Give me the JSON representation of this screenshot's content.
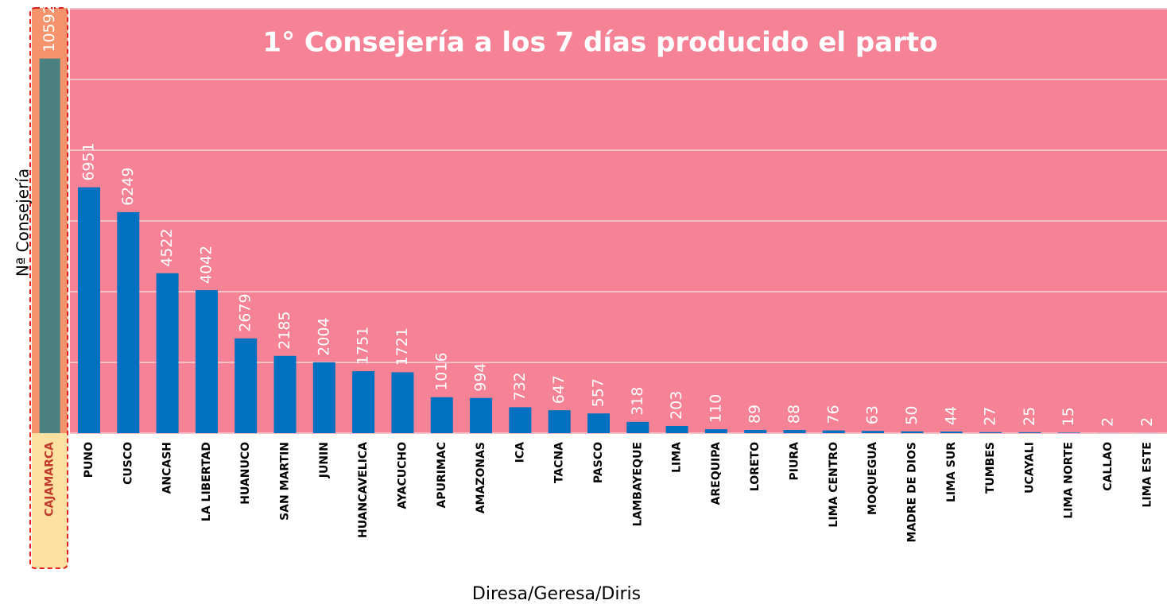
{
  "chart_data": {
    "type": "bar",
    "title": "1° Consejería a los 7 días producido el parto",
    "y_label": "Nª Consejería",
    "x_label": "Diresa/Geresa/Diris",
    "categories": [
      "CAJAMARCA",
      "PUNO",
      "CUSCO",
      "ANCASH",
      "LA LIBERTAD",
      "HUANUCO",
      "SAN MARTIN",
      "JUNIN",
      "HUANCAVELICA",
      "AYACUCHO",
      "APURIMAC",
      "AMAZONAS",
      "ICA",
      "TACNA",
      "PASCO",
      "LAMBAYEQUE",
      "LIMA",
      "AREQUIPA",
      "LORETO",
      "PIURA",
      "LIMA CENTRO",
      "MOQUEGUA",
      "MADRE DE DIOS",
      "LIMA SUR",
      "TUMBES",
      "UCAYALI",
      "LIMA NORTE",
      "CALLAO",
      "LIMA ESTE"
    ],
    "values": [
      10592,
      6951,
      6249,
      4522,
      4042,
      2679,
      2185,
      2004,
      1751,
      1721,
      1016,
      994,
      732,
      647,
      557,
      318,
      203,
      110,
      89,
      88,
      76,
      63,
      50,
      44,
      27,
      25,
      15,
      2,
      2
    ],
    "colors": [
      "#4a8080",
      "#0070c0",
      "#0070c0",
      "#0070c0",
      "#0070c0",
      "#0070c0",
      "#0070c0",
      "#0070c0",
      "#0070c0",
      "#0070c0",
      "#0070c0",
      "#0070c0",
      "#0070c0",
      "#0070c0",
      "#0070c0",
      "#0070c0",
      "#0070c0",
      "#0070c0",
      "#0070c0",
      "#0070c0",
      "#0070c0",
      "#0070c0",
      "#0070c0",
      "#0070c0",
      "#0070c0",
      "#0070c0",
      "#0070c0",
      "#0070c0",
      "#0070c0"
    ],
    "ylim": [
      0,
      12000
    ],
    "yticks": [
      0,
      2000,
      4000,
      6000,
      8000,
      10000,
      12000
    ],
    "grid": true
  }
}
